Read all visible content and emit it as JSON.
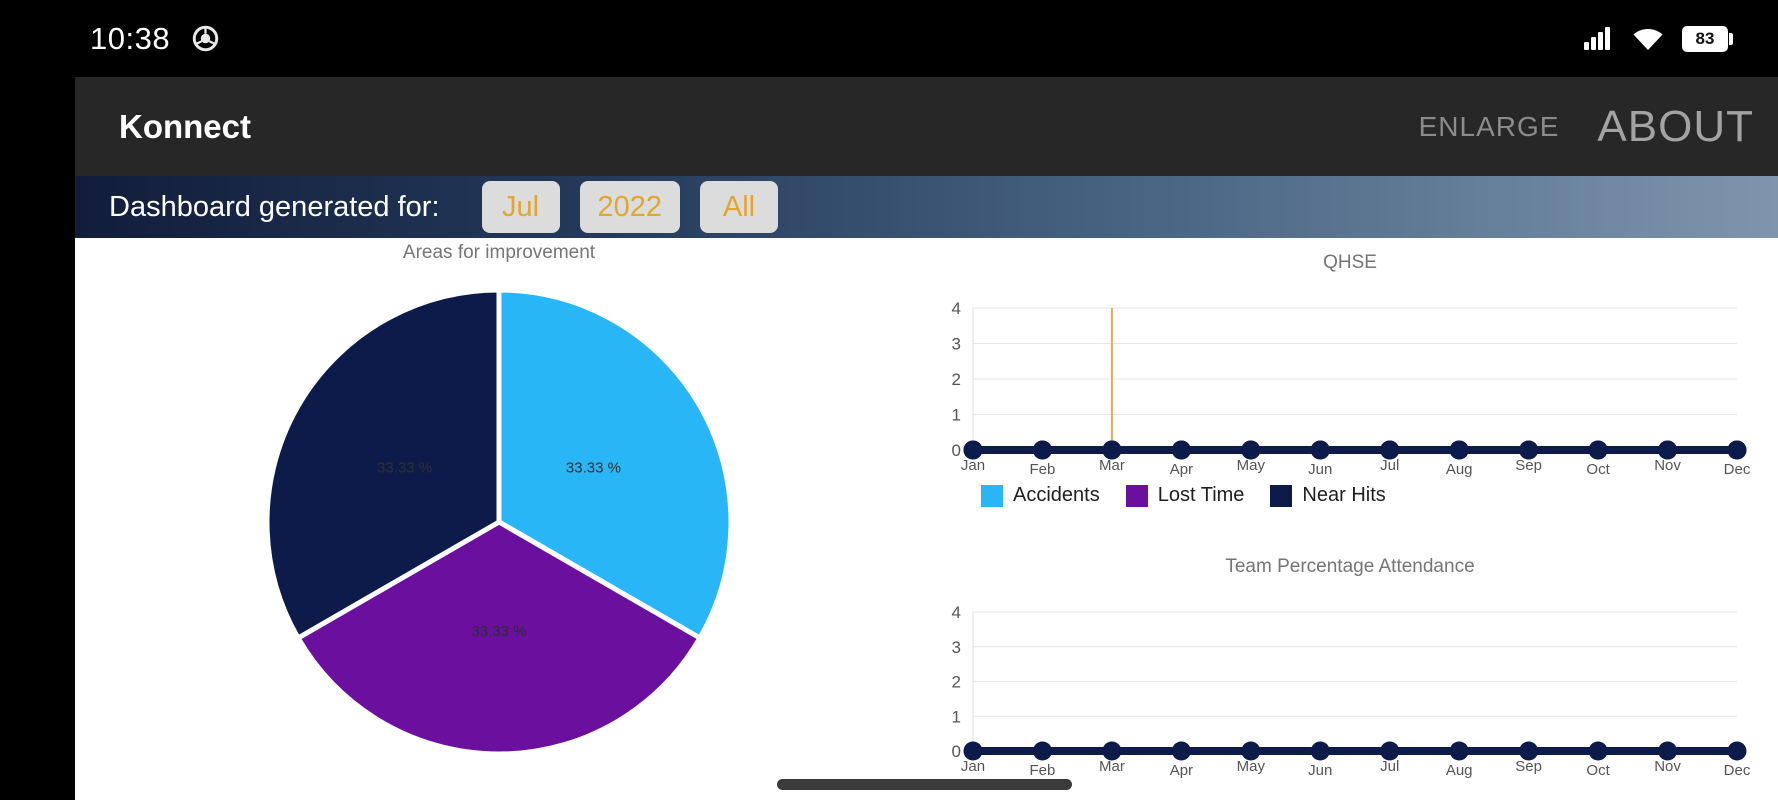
{
  "status_bar": {
    "time": "10:38",
    "battery_percent": "83",
    "icons": [
      "chrome-icon",
      "signal-icon",
      "wifi-icon",
      "battery-icon"
    ]
  },
  "app_bar": {
    "title": "Konnect",
    "actions": {
      "enlarge": "ENLARGE",
      "about": "ABOUT"
    }
  },
  "filter_bar": {
    "label": "Dashboard generated for:",
    "month": "Jul",
    "year": "2022",
    "scope": "All"
  },
  "theme": {
    "accent_gold": "#e2a62f",
    "banner_gradient_start": "#111d3a",
    "banner_gradient_end": "#7e95ac",
    "series_cyan": "#29b6f6",
    "series_purple": "#6a0f9e",
    "series_navy": "#0d1b4a",
    "marker_orange": "#f2a64f"
  },
  "chart_data": [
    {
      "id": "areas-pie",
      "type": "pie",
      "title": "Areas for improvement",
      "values": [
        33.33,
        33.33,
        33.33
      ],
      "slice_labels": [
        "33.33 %",
        "33.33 %",
        "33.33 %"
      ],
      "colors": [
        "#29b6f6",
        "#6a0f9e",
        "#0d1b4a"
      ],
      "start_angle": "top",
      "direction": "clockwise"
    },
    {
      "id": "qhse",
      "type": "line",
      "title": "QHSE",
      "categories": [
        "Jan",
        "Feb",
        "Mar",
        "Apr",
        "May",
        "Jun",
        "Jul",
        "Aug",
        "Sep",
        "Oct",
        "Nov",
        "Dec"
      ],
      "series": [
        {
          "name": "Accidents",
          "color": "#29b6f6",
          "values": [
            0,
            0,
            0,
            0,
            0,
            0,
            0,
            0,
            0,
            0,
            0,
            0
          ]
        },
        {
          "name": "Lost Time",
          "color": "#6a0f9e",
          "values": [
            0,
            0,
            0,
            0,
            0,
            0,
            0,
            0,
            0,
            0,
            0,
            0
          ]
        },
        {
          "name": "Near Hits",
          "color": "#0d1b4a",
          "values": [
            0,
            0,
            0,
            0,
            0,
            0,
            0,
            0,
            0,
            0,
            0,
            0
          ]
        }
      ],
      "ylim": [
        0,
        4
      ],
      "yticks": [
        0,
        1,
        2,
        3,
        4
      ],
      "grid": true,
      "legend_position": "bottom",
      "marker_line": {
        "category": "Mar",
        "color": "#f2a64f"
      }
    },
    {
      "id": "attendance",
      "type": "line",
      "title": "Team Percentage Attendance",
      "categories": [
        "Jan",
        "Feb",
        "Mar",
        "Apr",
        "May",
        "Jun",
        "Jul",
        "Aug",
        "Sep",
        "Oct",
        "Nov",
        "Dec"
      ],
      "series": [
        {
          "name": "",
          "color": "#0d1b4a",
          "values": [
            0,
            0,
            0,
            0,
            0,
            0,
            0,
            0,
            0,
            0,
            0,
            0
          ]
        }
      ],
      "ylim": [
        0,
        4
      ],
      "yticks": [
        0,
        1,
        2,
        3,
        4
      ],
      "grid": true,
      "legend_position": "none"
    }
  ]
}
